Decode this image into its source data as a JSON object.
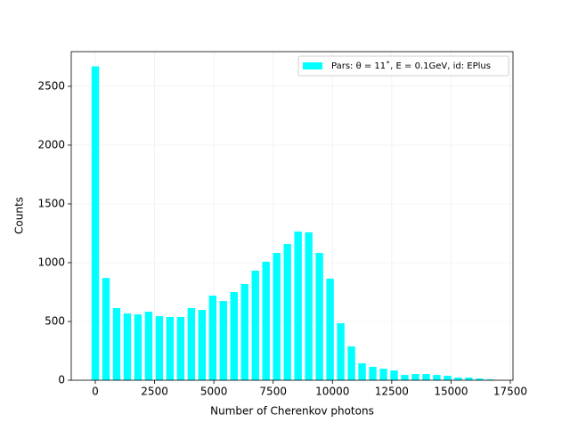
{
  "chart_data": {
    "type": "histogram",
    "xlabel": "Number of Cherenkov photons",
    "ylabel": "Counts",
    "bins": [
      -225,
      225,
      675,
      1125,
      1575,
      2025,
      2475,
      2925,
      3375,
      3825,
      4275,
      4725,
      5175,
      5625,
      6075,
      6525,
      6975,
      7425,
      7875,
      8325,
      8775,
      9225,
      9675,
      10125,
      10575,
      11025,
      11475,
      11925,
      12375,
      12825,
      13275,
      13725,
      14175,
      14625,
      15075,
      15525,
      15975,
      16425,
      16875
    ],
    "series": [
      {
        "name": "Pars: θ = 11˚, E = 0.1GeV, id: EPlus",
        "color": "#00ffff",
        "values": [
          2670,
          870,
          614,
          568,
          560,
          583,
          545,
          538,
          538,
          614,
          598,
          720,
          674,
          750,
          818,
          932,
          1008,
          1083,
          1159,
          1265,
          1258,
          1083,
          864,
          485,
          288,
          144,
          114,
          98,
          83,
          45,
          53,
          53,
          45,
          38,
          23,
          23,
          15,
          8
        ]
      }
    ],
    "xlim": [
      -1014,
      17613
    ],
    "ylim": [
      0,
      2795
    ],
    "xticks": [
      0,
      2500,
      5000,
      7500,
      10000,
      12500,
      15000,
      17500
    ],
    "yticks": [
      0,
      500,
      1000,
      1500,
      2000,
      2500
    ],
    "grid": true,
    "legend": "upper right"
  }
}
